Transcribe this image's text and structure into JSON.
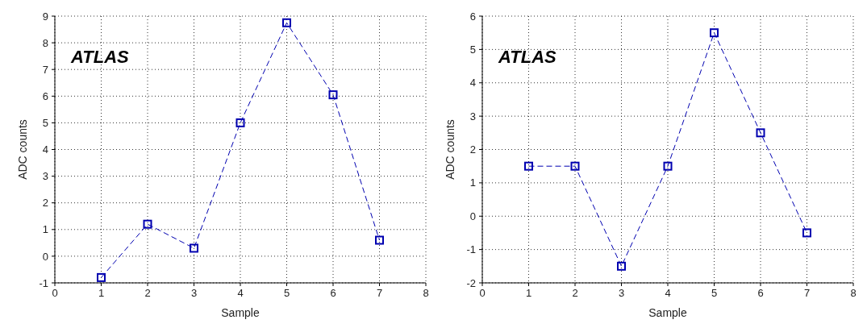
{
  "chart_data": [
    {
      "type": "line",
      "annotations": [
        "ATLAS"
      ],
      "xlabel": "Sample",
      "ylabel": "ADC counts",
      "x": [
        1,
        2,
        3,
        4,
        5,
        6,
        7
      ],
      "series": [
        {
          "color": "#0000b0",
          "values": [
            -0.8,
            1.2,
            0.3,
            5.0,
            8.75,
            6.05,
            0.6
          ]
        }
      ],
      "xlim": [
        0,
        8
      ],
      "xticks": [
        0,
        1,
        2,
        3,
        4,
        5,
        6,
        7,
        8
      ],
      "ylim": [
        -1,
        9
      ],
      "yticks": [
        -1,
        0,
        1,
        2,
        3,
        4,
        5,
        6,
        7,
        8,
        9
      ],
      "grid": true,
      "marker": "square",
      "line_style": "dashed"
    },
    {
      "type": "line",
      "annotations": [
        "ATLAS"
      ],
      "xlabel": "Sample",
      "ylabel": "ADC counts",
      "x": [
        1,
        2,
        3,
        4,
        5,
        6,
        7
      ],
      "series": [
        {
          "color": "#0000b0",
          "values": [
            1.5,
            1.5,
            -1.5,
            1.5,
            5.5,
            2.5,
            -0.5
          ]
        }
      ],
      "xlim": [
        0,
        8
      ],
      "xticks": [
        0,
        1,
        2,
        3,
        4,
        5,
        6,
        7,
        8
      ],
      "ylim": [
        -2,
        6
      ],
      "yticks": [
        -2,
        -1,
        0,
        1,
        2,
        3,
        4,
        5,
        6
      ],
      "grid": true,
      "marker": "square",
      "line_style": "dashed"
    }
  ]
}
